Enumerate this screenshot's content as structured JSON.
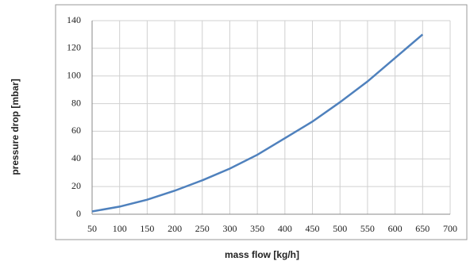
{
  "chart_data": {
    "type": "line",
    "x_label": "mass flow [kg/h]",
    "y_label": "pressure drop [mbar]",
    "x": [
      50,
      100,
      150,
      200,
      250,
      300,
      350,
      400,
      450,
      500,
      550,
      600,
      650
    ],
    "series": [
      {
        "name": "pressure drop",
        "color": "#4f81bd",
        "values": [
          2,
          5.5,
          10.5,
          17,
          24.5,
          33,
          43,
          55,
          67,
          81,
          96,
          113,
          130
        ]
      }
    ],
    "xlim": [
      50,
      700
    ],
    "xticks": [
      50,
      100,
      150,
      200,
      250,
      300,
      350,
      400,
      450,
      500,
      550,
      600,
      650,
      700
    ],
    "ylim": [
      0,
      140
    ],
    "yticks": [
      0,
      20,
      40,
      60,
      80,
      100,
      120,
      140
    ],
    "grid": true
  }
}
